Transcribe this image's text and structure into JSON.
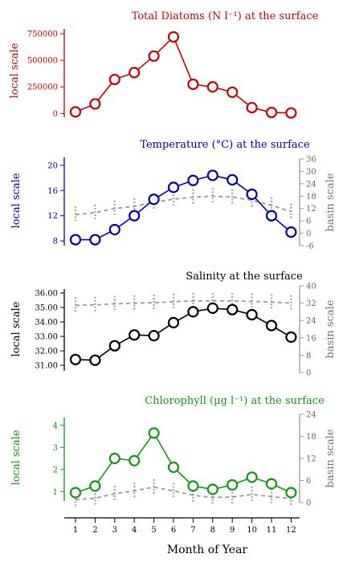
{
  "colors": {
    "red": "#cc0000",
    "blue": "#0000bb",
    "black": "#000000",
    "green": "#119911",
    "grey": "#999999"
  },
  "shared_x": {
    "label": "Month of Year",
    "ticks": [
      "1",
      "2",
      "3",
      "4",
      "5",
      "6",
      "7",
      "8",
      "9",
      "10",
      "11",
      "12"
    ]
  },
  "chart_data": [
    {
      "type": "line",
      "title": "Total Diatoms (N l⁻¹) at the surface",
      "ylabel": "local scale",
      "ylim": [
        -50000,
        780000
      ],
      "y_ticks": [
        0,
        250000,
        500000,
        750000
      ],
      "y_tick_labels": [
        "0",
        "250000",
        "500000",
        "750000"
      ],
      "x": [
        1,
        2,
        3,
        4,
        5,
        6,
        7,
        8,
        9,
        10,
        11,
        12
      ],
      "series": [
        {
          "values": [
            15000,
            90000,
            320000,
            385000,
            540000,
            720000,
            275000,
            250000,
            200000,
            55000,
            10000,
            5000
          ]
        }
      ]
    },
    {
      "type": "line",
      "title": "Temperature (°C) at the surface",
      "ylabel": "local scale",
      "ylabel_right": "basin scale",
      "ylim": [
        7,
        21
      ],
      "y_ticks": [
        8,
        12,
        16,
        20
      ],
      "y_tick_labels": [
        "8",
        "12",
        "16",
        "20"
      ],
      "ylim_right": [
        -6,
        36
      ],
      "y_ticks_right": [
        -6,
        0,
        6,
        12,
        18,
        24,
        30,
        36
      ],
      "y_tick_labels_right": [
        "-6",
        "0",
        "6",
        "12",
        "18",
        "24",
        "30",
        "36"
      ],
      "x": [
        1,
        2,
        3,
        4,
        5,
        6,
        7,
        8,
        9,
        10,
        11,
        12
      ],
      "series": [
        {
          "values": [
            8.2,
            8.2,
            9.8,
            12.0,
            14.6,
            16.5,
            17.6,
            18.4,
            17.7,
            15.4,
            12.0,
            9.4
          ]
        }
      ],
      "basin_series": {
        "axis": "right",
        "values": [
          9,
          10,
          12,
          13,
          15,
          16.5,
          17.5,
          18,
          17.5,
          16,
          13.5,
          10.5
        ]
      }
    },
    {
      "type": "line",
      "title": "Salinity at the surface",
      "ylabel": "local scale",
      "ylabel_right": "basin scale",
      "ylim": [
        30.5,
        36.5
      ],
      "y_ticks": [
        31,
        32,
        33,
        34,
        35,
        36
      ],
      "y_tick_labels": [
        "31.00",
        "32.00",
        "33.00",
        "34.00",
        "35.00",
        "36.00"
      ],
      "ylim_right": [
        0,
        40
      ],
      "y_ticks_right": [
        0,
        8,
        16,
        24,
        32,
        40
      ],
      "y_tick_labels_right": [
        "0",
        "8",
        "16",
        "24",
        "32",
        "40"
      ],
      "x": [
        1,
        2,
        3,
        4,
        5,
        6,
        7,
        8,
        9,
        10,
        11,
        12
      ],
      "series": [
        {
          "values": [
            31.4,
            31.35,
            32.35,
            33.1,
            33.05,
            33.95,
            34.7,
            34.95,
            34.85,
            34.5,
            33.75,
            32.95
          ]
        }
      ],
      "basin_series": {
        "axis": "right",
        "values": [
          31,
          31.2,
          31.7,
          32,
          32.2,
          32.7,
          33,
          33,
          33,
          32.8,
          32.5,
          32
        ]
      }
    },
    {
      "type": "line",
      "title": "Chlorophyll (µg l⁻¹) at the surface",
      "ylabel": "local scale",
      "ylabel_right": "basin scale",
      "ylim": [
        0.5,
        4.5
      ],
      "y_ticks": [
        1,
        2,
        3,
        4
      ],
      "y_tick_labels": [
        "1",
        "2",
        "3",
        "4"
      ],
      "ylim_right": [
        0,
        24
      ],
      "y_ticks_right": [
        0,
        6,
        12,
        18,
        24
      ],
      "y_tick_labels_right": [
        "0",
        "6",
        "12",
        "18",
        "24"
      ],
      "x": [
        1,
        2,
        3,
        4,
        5,
        6,
        7,
        8,
        9,
        10,
        11,
        12
      ],
      "series": [
        {
          "values": [
            0.95,
            1.25,
            2.5,
            2.4,
            3.65,
            2.1,
            1.25,
            1.1,
            1.3,
            1.65,
            1.35,
            0.95
          ]
        }
      ],
      "basin_series": {
        "axis": "right",
        "values": [
          0.8,
          1.2,
          2.4,
          3.2,
          4.2,
          3.2,
          2,
          1.4,
          1.5,
          2.2,
          1.6,
          1.1
        ]
      }
    }
  ]
}
